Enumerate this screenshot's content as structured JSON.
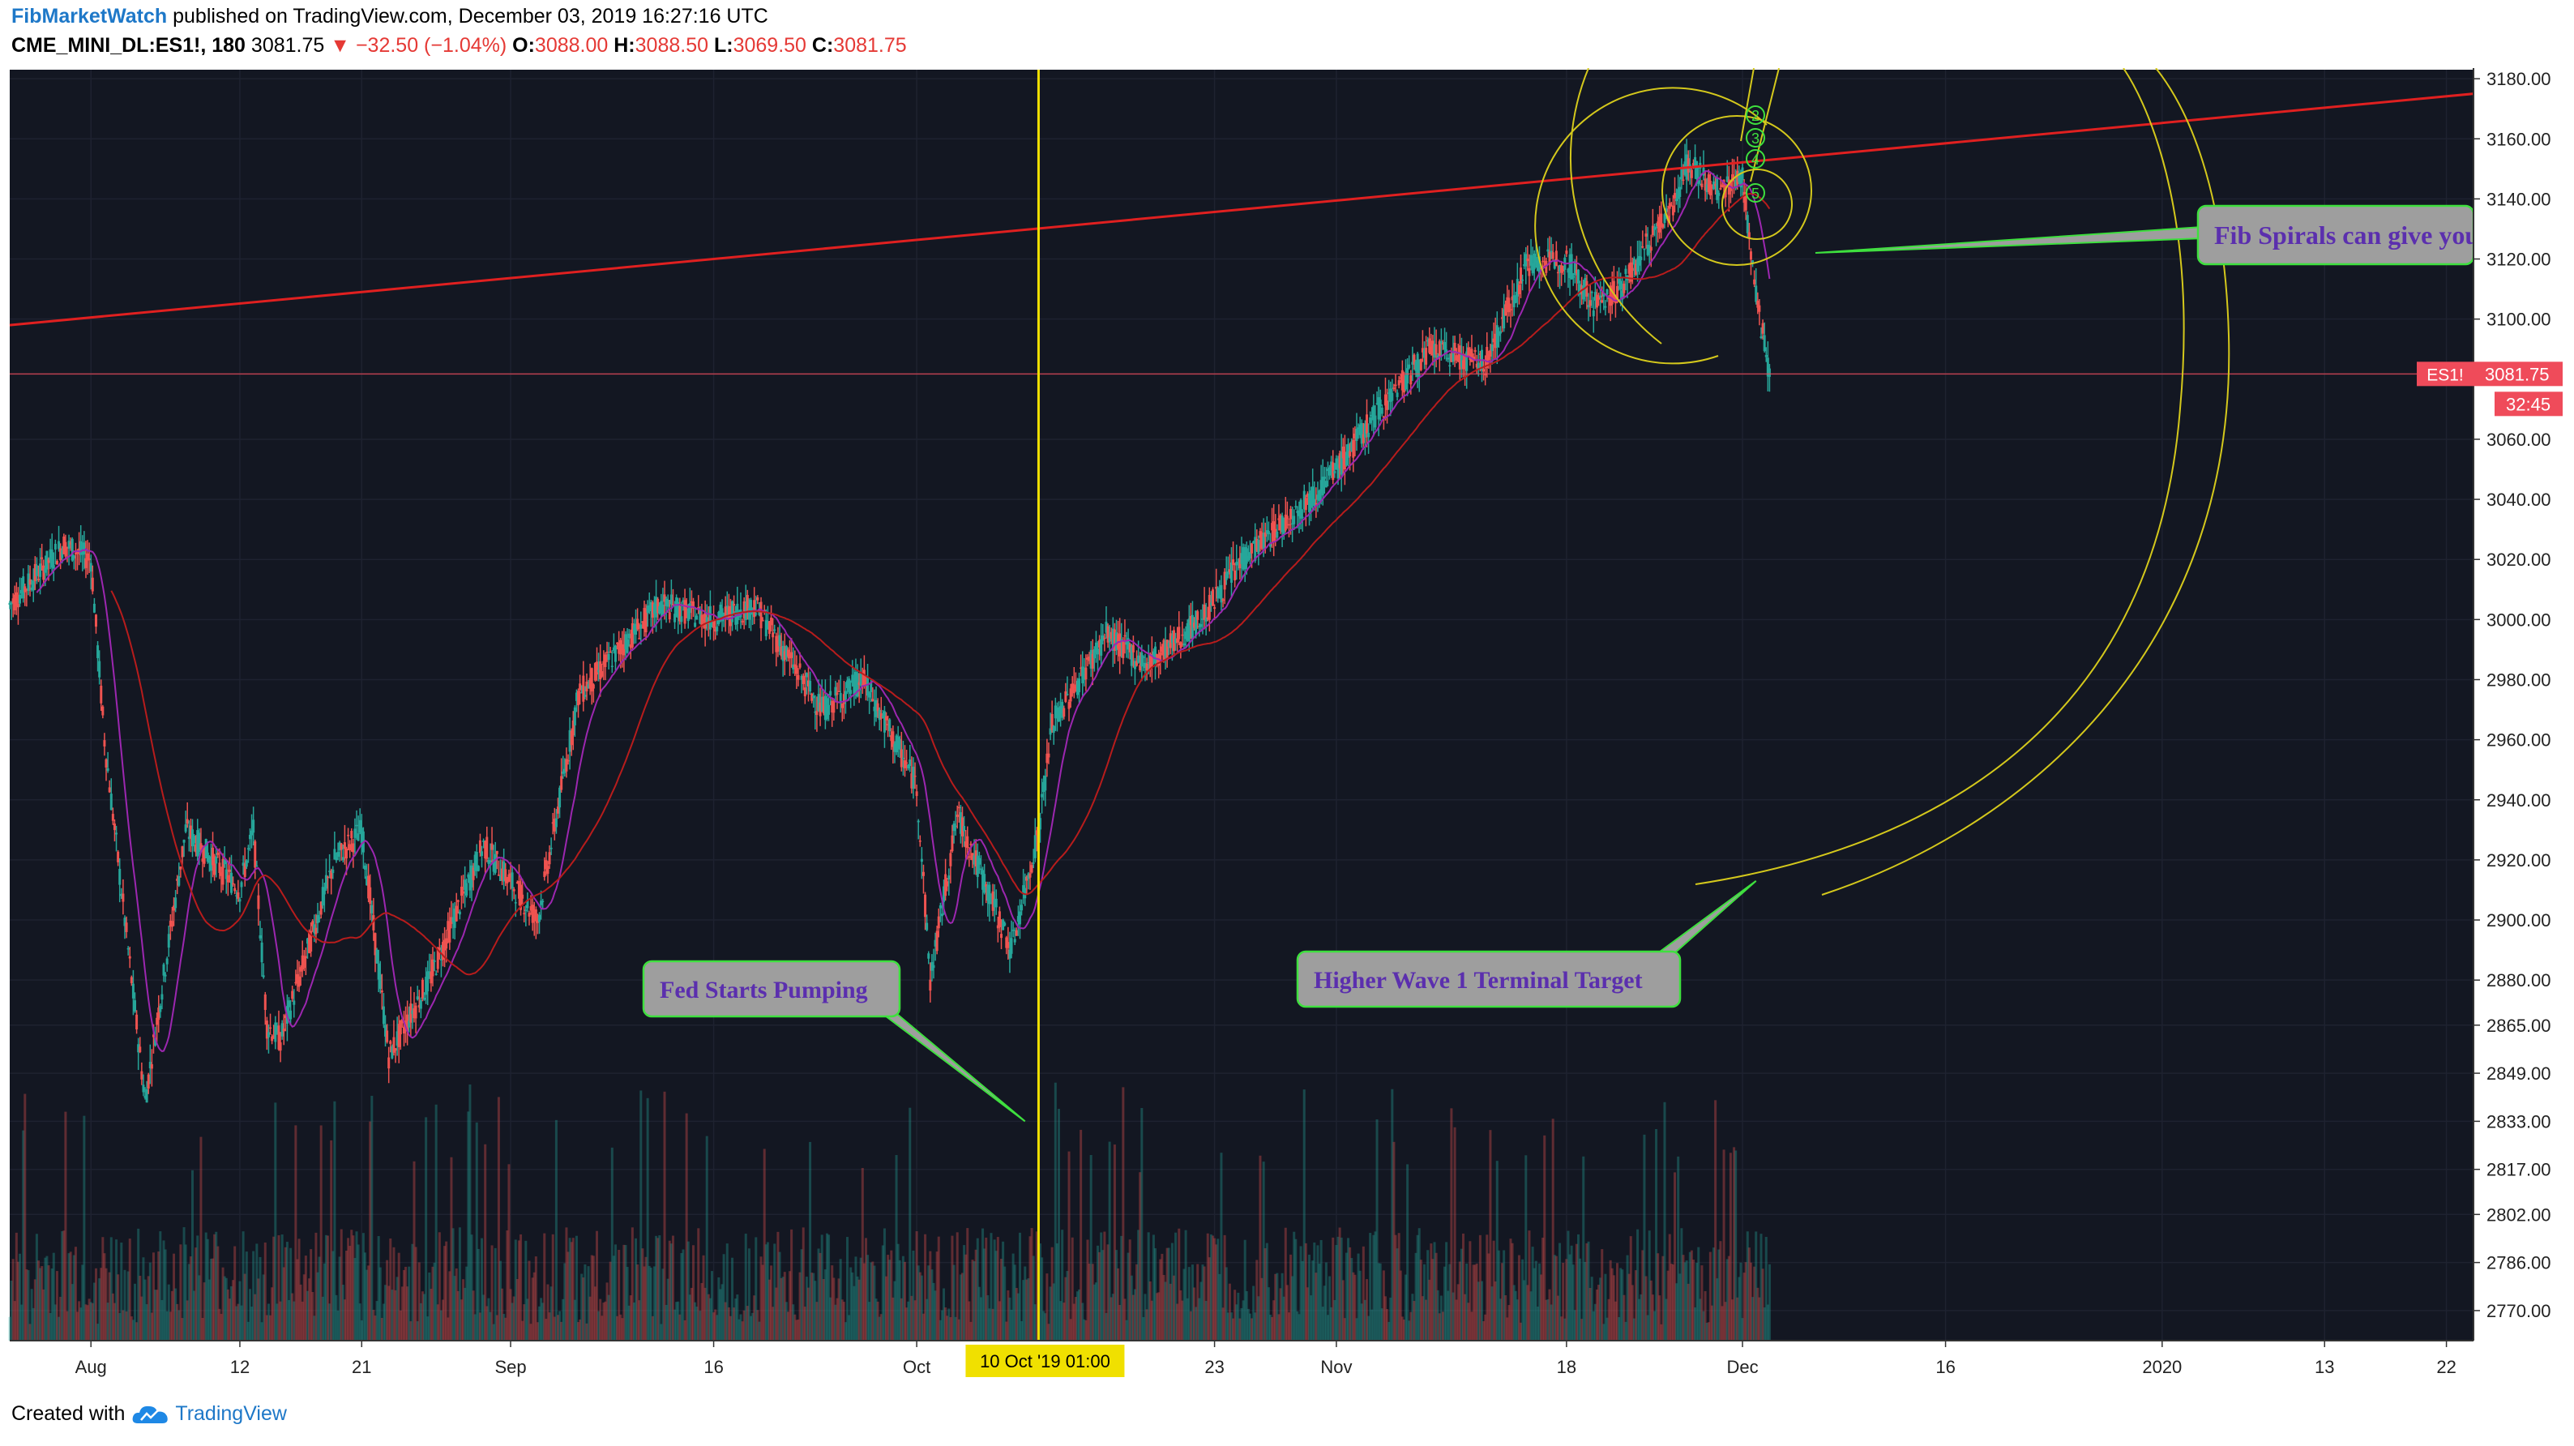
{
  "header": {
    "author": "FibMarketWatch",
    "published_text": "published on TradingView.com, December 03, 2019 16:27:16 UTC",
    "symbol": "CME_MINI_DL:ES1!, 180",
    "last": "3081.75",
    "change": "▼ −32.50 (−1.04%)",
    "o_label": "O:",
    "o": "3088.00",
    "h_label": "H:",
    "h": "3088.50",
    "l_label": "L:",
    "l": "3069.50",
    "c_label": "C:",
    "c": "3081.75"
  },
  "footer": {
    "created_with": "Created with",
    "brand": "TradingView"
  },
  "colors": {
    "background": "#131722",
    "grid": "#1e2230",
    "up": "#26a69a",
    "down": "#ef5350",
    "ma_fast": "#9c27b0",
    "ma_slow": "#b71c1c",
    "trendline": "#e02020",
    "fib": "#d4c81c",
    "vline": "#f0e000",
    "callout_fill": "#9e9e9e",
    "callout_border": "#3ee03e",
    "callout_text": "#5b2fae",
    "price_tag": "#ef4b5a"
  },
  "chart_data": {
    "type": "candlestick",
    "symbol": "ES1!",
    "timeframe": "180",
    "ylim": [
      2760,
      3183
    ],
    "y_ticks": [
      3180,
      3160,
      3140,
      3120,
      3100,
      3081.75,
      3060,
      3040,
      3020,
      3000,
      2980,
      2960,
      2940,
      2920,
      2900,
      2880,
      2865,
      2849,
      2833,
      2817,
      2802,
      2786,
      2770
    ],
    "y_tick_labels": [
      "3180.00",
      "3160.00",
      "3140.00",
      "3120.00",
      "3100.00",
      "3081.75",
      "3060.00",
      "3040.00",
      "3020.00",
      "3000.00",
      "2980.00",
      "2960.00",
      "2940.00",
      "2920.00",
      "2900.00",
      "2880.00",
      "2865.00",
      "2849.00",
      "2833.00",
      "2817.00",
      "2802.00",
      "2786.00",
      "2770.00"
    ],
    "x_labels": [
      "Aug",
      "12",
      "21",
      "Sep",
      "16",
      "Oct",
      "23",
      "Nov",
      "18",
      "Dec",
      "16",
      "2020",
      "13",
      "22"
    ],
    "x_label_dates": [
      "2019-08-01",
      "2019-08-12",
      "2019-08-21",
      "2019-09-01",
      "2019-09-16",
      "2019-10-01",
      "2019-10-23",
      "2019-11-01",
      "2019-11-18",
      "2019-12-01",
      "2019-12-16",
      "2020-01-01",
      "2020-01-13",
      "2020-01-22"
    ],
    "x_range": [
      "2019-07-26",
      "2020-01-24"
    ],
    "price_path": [
      [
        "2019-07-26",
        3005
      ],
      [
        "2019-07-30",
        3025
      ],
      [
        "2019-08-01",
        3020
      ],
      [
        "2019-08-02",
        2960
      ],
      [
        "2019-08-05",
        2840
      ],
      [
        "2019-08-06",
        2870
      ],
      [
        "2019-08-08",
        2930
      ],
      [
        "2019-08-12",
        2910
      ],
      [
        "2019-08-13",
        2930
      ],
      [
        "2019-08-14",
        2865
      ],
      [
        "2019-08-15",
        2860
      ],
      [
        "2019-08-19",
        2920
      ],
      [
        "2019-08-21",
        2930
      ],
      [
        "2019-08-23",
        2855
      ],
      [
        "2019-08-26",
        2880
      ],
      [
        "2019-08-30",
        2925
      ],
      [
        "2019-09-03",
        2900
      ],
      [
        "2019-09-06",
        2975
      ],
      [
        "2019-09-12",
        3005
      ],
      [
        "2019-09-16",
        3000
      ],
      [
        "2019-09-19",
        3005
      ],
      [
        "2019-09-24",
        2970
      ],
      [
        "2019-09-27",
        2980
      ],
      [
        "2019-10-01",
        2945
      ],
      [
        "2019-10-02",
        2880
      ],
      [
        "2019-10-04",
        2935
      ],
      [
        "2019-10-08",
        2890
      ],
      [
        "2019-10-10",
        2930
      ],
      [
        "2019-10-11",
        2965
      ],
      [
        "2019-10-15",
        2995
      ],
      [
        "2019-10-18",
        2985
      ],
      [
        "2019-10-22",
        3000
      ],
      [
        "2019-10-25",
        3020
      ],
      [
        "2019-10-30",
        3040
      ],
      [
        "2019-11-01",
        3050
      ],
      [
        "2019-11-05",
        3075
      ],
      [
        "2019-11-08",
        3090
      ],
      [
        "2019-11-12",
        3085
      ],
      [
        "2019-11-15",
        3118
      ],
      [
        "2019-11-18",
        3120
      ],
      [
        "2019-11-20",
        3105
      ],
      [
        "2019-11-22",
        3110
      ],
      [
        "2019-11-26",
        3140
      ],
      [
        "2019-11-27",
        3152
      ],
      [
        "2019-11-29",
        3142
      ],
      [
        "2019-12-01",
        3148
      ],
      [
        "2019-12-02",
        3108
      ],
      [
        "2019-12-03",
        3081.75
      ]
    ],
    "last_price": 3081.75,
    "last_price_label": "3081.75",
    "last_symbol_label": "ES1!",
    "countdown": "32:45",
    "crosshair_label": "10 Oct '19   01:00",
    "trendline": {
      "from": [
        "2019-07-26",
        3098
      ],
      "to": [
        "2020-01-24",
        3175
      ]
    },
    "annotations": [
      {
        "text": "Fed Starts Pumping",
        "pointer_to": [
          "2019-10-09",
          2833
        ]
      },
      {
        "text": "Higher Wave 1 Terminal Target",
        "pointer_to": [
          "2019-12-02",
          2913
        ]
      },
      {
        "text": "Fib Spirals can give you"
      }
    ],
    "wave_labels": [
      "2",
      "3",
      "4",
      "5"
    ]
  }
}
